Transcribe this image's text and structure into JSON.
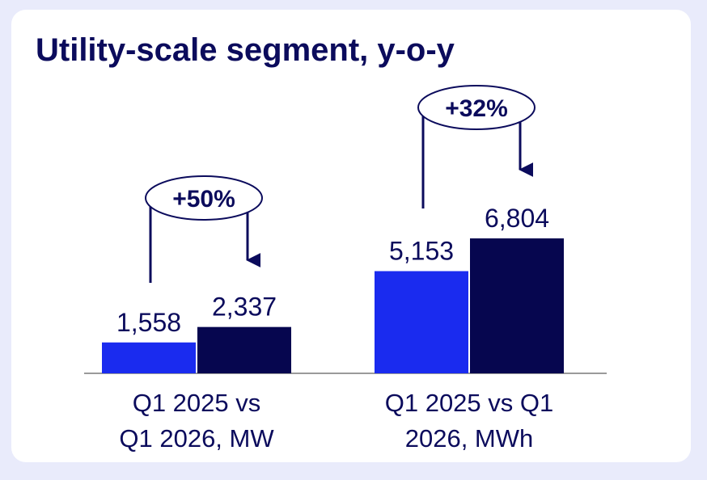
{
  "colors": {
    "q1_2025": "#1a2bef",
    "q1_2026": "#06064f",
    "text": "#0b0b5c",
    "axis": "#9a9a9a",
    "page_bg": "#e9ebfb",
    "card_bg": "#ffffff"
  },
  "chart_data": {
    "type": "bar",
    "title": "Utility-scale segment, y-o-y",
    "groups": [
      {
        "category_lines": [
          "Q1 2025 vs",
          "Q1 2026, MW"
        ],
        "values": [
          1558,
          2337
        ],
        "value_labels": [
          "1,558",
          "2,337"
        ],
        "change_label": "+50%"
      },
      {
        "category_lines": [
          "Q1 2025 vs Q1",
          "2026, MWh"
        ],
        "values": [
          5153,
          6804
        ],
        "value_labels": [
          "5,153",
          "6,804"
        ],
        "change_label": "+32%"
      }
    ],
    "grid": false,
    "legend": "none"
  }
}
